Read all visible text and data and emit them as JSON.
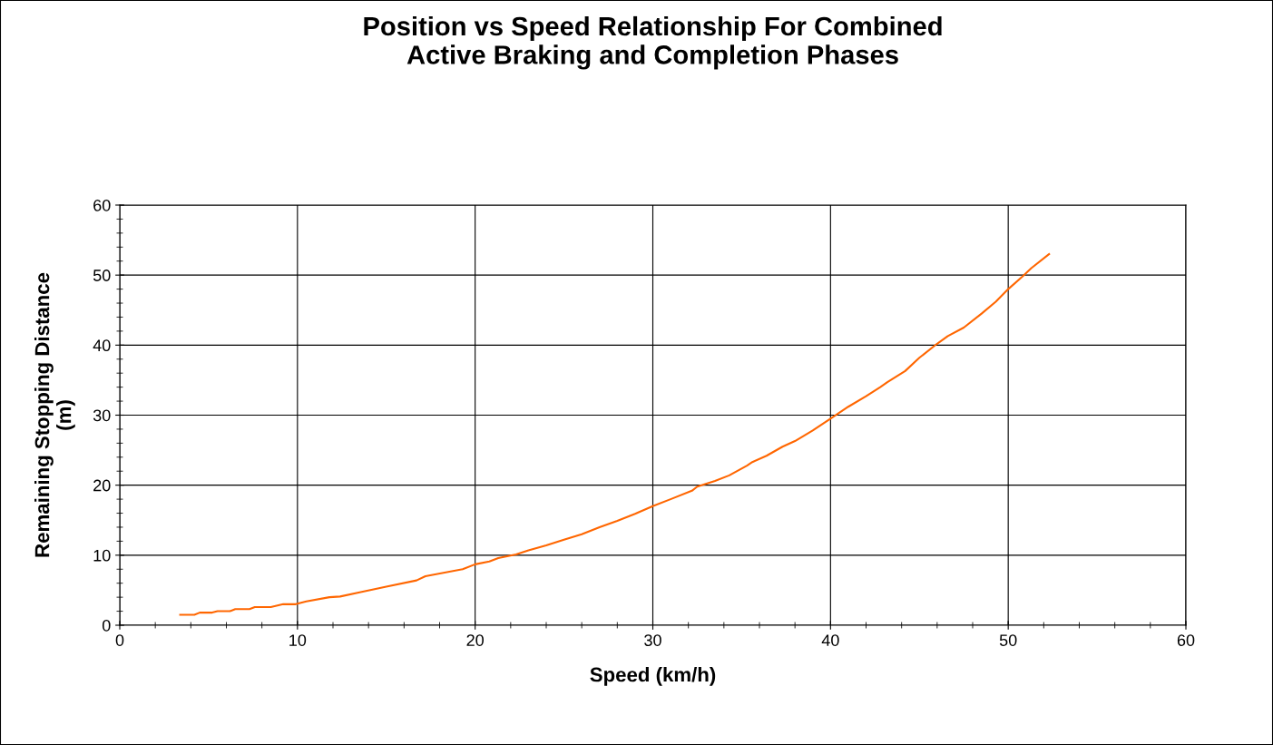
{
  "chart_data": {
    "type": "line",
    "title": "Position vs Speed Relationship For Combined\nActive Braking and Completion Phases",
    "xlabel": "Speed (km/h)",
    "ylabel": "Remaining Stopping Distance\n(m)",
    "xlim": [
      0,
      60
    ],
    "ylim": [
      0,
      60
    ],
    "xticks": [
      0,
      {
        "value": 2,
        "label": null
      },
      {
        "value": 4,
        "label": null
      },
      {
        "value": 6,
        "label": null
      },
      {
        "value": 8,
        "label": null
      },
      10,
      {
        "value": 12,
        "label": null
      },
      {
        "value": 14,
        "label": null
      },
      {
        "value": 16,
        "label": null
      },
      {
        "value": 18,
        "label": null
      },
      20,
      {
        "value": 22,
        "label": null
      },
      {
        "value": 24,
        "label": null
      },
      {
        "value": 26,
        "label": null
      },
      {
        "value": 28,
        "label": null
      },
      30,
      {
        "value": 32,
        "label": null
      },
      {
        "value": 34,
        "label": null
      },
      {
        "value": 36,
        "label": null
      },
      {
        "value": 38,
        "label": null
      },
      40,
      {
        "value": 42,
        "label": null
      },
      {
        "value": 44,
        "label": null
      },
      {
        "value": 46,
        "label": null
      },
      {
        "value": 48,
        "label": null
      },
      50,
      {
        "value": 52,
        "label": null
      },
      {
        "value": 54,
        "label": null
      },
      {
        "value": 56,
        "label": null
      },
      {
        "value": 58,
        "label": null
      },
      60
    ],
    "yticks": [
      0,
      {
        "value": 2,
        "label": null
      },
      {
        "value": 4,
        "label": null
      },
      {
        "value": 6,
        "label": null
      },
      {
        "value": 8,
        "label": null
      },
      10,
      {
        "value": 12,
        "label": null
      },
      {
        "value": 14,
        "label": null
      },
      {
        "value": 16,
        "label": null
      },
      {
        "value": 18,
        "label": null
      },
      20,
      {
        "value": 22,
        "label": null
      },
      {
        "value": 24,
        "label": null
      },
      {
        "value": 26,
        "label": null
      },
      {
        "value": 28,
        "label": null
      },
      30,
      {
        "value": 32,
        "label": null
      },
      {
        "value": 34,
        "label": null
      },
      {
        "value": 36,
        "label": null
      },
      {
        "value": 38,
        "label": null
      },
      40,
      {
        "value": 42,
        "label": null
      },
      {
        "value": 44,
        "label": null
      },
      {
        "value": 46,
        "label": null
      },
      {
        "value": 48,
        "label": null
      },
      50,
      {
        "value": 52,
        "label": null
      },
      {
        "value": 54,
        "label": null
      },
      {
        "value": 56,
        "label": null
      },
      {
        "value": 58,
        "label": null
      },
      60
    ],
    "grid": true,
    "marker": "none",
    "line_style": "solid",
    "series": [
      {
        "color": "#ff6600",
        "x": [
          3.4,
          4.2,
          4.5,
          5.2,
          5.5,
          6.2,
          6.5,
          7.3,
          7.6,
          8.5,
          9.2,
          9.9,
          10.5,
          11.8,
          12.4,
          13.5,
          15,
          16.7,
          17.2,
          19.3,
          20,
          20.8,
          21.3,
          22.3,
          23,
          24,
          25,
          26,
          27,
          28,
          29,
          30,
          31,
          32.2,
          32.5,
          33.5,
          34.3,
          35.3,
          35.6,
          36.4,
          37.3,
          38,
          39,
          40,
          41,
          42,
          42.8,
          43.2,
          44.2,
          45,
          46,
          46.6,
          47.5,
          48.5,
          49.3,
          50,
          50.8,
          51.3,
          52.3
        ],
        "values": [
          1.5,
          1.5,
          1.8,
          1.8,
          2.0,
          2.0,
          2.3,
          2.3,
          2.6,
          2.6,
          3.0,
          3.0,
          3.4,
          4.0,
          4.1,
          4.7,
          5.5,
          6.4,
          7.0,
          8.0,
          8.7,
          9.1,
          9.6,
          10.1,
          10.7,
          11.4,
          12.2,
          13.0,
          14.0,
          14.9,
          15.9,
          17.0,
          18.0,
          19.2,
          19.8,
          20.6,
          21.4,
          22.8,
          23.3,
          24.2,
          25.5,
          26.3,
          27.8,
          29.5,
          31.2,
          32.7,
          34.0,
          34.7,
          36.3,
          38.2,
          40.2,
          41.3,
          42.5,
          44.5,
          46.2,
          48.0,
          49.8,
          51.0,
          53.0
        ]
      }
    ]
  }
}
